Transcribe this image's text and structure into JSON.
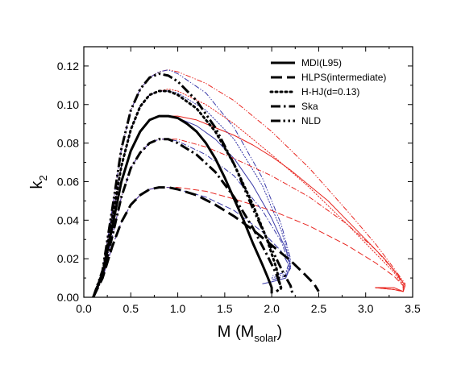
{
  "chart_data": {
    "type": "line",
    "title": "",
    "xlabel": {
      "main": "M (M",
      "sub": "solar",
      "close": ")"
    },
    "ylabel": {
      "main": "k",
      "sub": "2"
    },
    "xlim": [
      0.0,
      3.5
    ],
    "ylim": [
      0.0,
      0.13
    ],
    "x_ticks": [
      0.0,
      0.5,
      1.0,
      1.5,
      2.0,
      2.5,
      3.0,
      3.5
    ],
    "x_tick_labels": [
      "0.0",
      "0.5",
      "1.0",
      "1.5",
      "2.0",
      "2.5",
      "3.0",
      "3.5"
    ],
    "y_ticks": [
      0.0,
      0.02,
      0.04,
      0.06,
      0.08,
      0.1,
      0.12
    ],
    "y_tick_labels": [
      "0.00",
      "0.02",
      "0.04",
      "0.06",
      "0.08",
      "0.10",
      "0.12"
    ],
    "grid": false,
    "legend_position": "top-right",
    "legend": [
      {
        "label": "MDI(L95)",
        "style": "solid"
      },
      {
        "label": "HLPS(intermediate)",
        "style": "dash"
      },
      {
        "label": "H-HJ(d=0.13)",
        "style": "dot"
      },
      {
        "label": "Ska",
        "style": "dashdot"
      },
      {
        "label": "NLD",
        "style": "dashdotdot"
      }
    ],
    "colors": {
      "black": "#000000",
      "red": "#e8251f",
      "blue": "#3a3aa8"
    },
    "series": [
      {
        "name": "MDI(L95)",
        "color": "#000000",
        "style": "solid",
        "width": 3,
        "x": [
          0.1,
          0.2,
          0.3,
          0.4,
          0.5,
          0.6,
          0.7,
          0.8,
          0.9,
          1.0,
          1.1,
          1.2,
          1.3,
          1.4,
          1.5,
          1.6,
          1.7,
          1.8,
          1.9,
          1.96,
          2.0,
          2.0
        ],
        "y": [
          0.0,
          0.012,
          0.036,
          0.06,
          0.076,
          0.086,
          0.092,
          0.094,
          0.094,
          0.093,
          0.09,
          0.086,
          0.08,
          0.072,
          0.062,
          0.051,
          0.04,
          0.028,
          0.017,
          0.01,
          0.005,
          0.002
        ]
      },
      {
        "name": "MDI(L95)",
        "color": "#e8251f",
        "style": "solid",
        "width": 1,
        "x": [
          0.1,
          0.2,
          0.3,
          0.4,
          0.5,
          0.6,
          0.7,
          0.8,
          0.9,
          1.0,
          1.2,
          1.4,
          1.6,
          1.8,
          2.0,
          2.2,
          2.4,
          2.6,
          2.8,
          3.0,
          3.2,
          3.35,
          3.42,
          3.4,
          3.3,
          3.1
        ],
        "y": [
          0.0,
          0.012,
          0.036,
          0.06,
          0.076,
          0.086,
          0.092,
          0.094,
          0.094,
          0.094,
          0.092,
          0.088,
          0.084,
          0.079,
          0.073,
          0.066,
          0.058,
          0.05,
          0.04,
          0.03,
          0.02,
          0.011,
          0.006,
          0.003,
          0.005,
          0.005
        ]
      },
      {
        "name": "MDI(L95)",
        "color": "#3a3aa8",
        "style": "solid",
        "width": 1,
        "x": [
          0.1,
          0.2,
          0.3,
          0.4,
          0.5,
          0.6,
          0.7,
          0.8,
          0.9,
          1.0,
          1.2,
          1.4,
          1.6,
          1.8,
          2.0,
          2.15,
          2.2,
          2.15,
          2.0,
          1.9
        ],
        "y": [
          0.0,
          0.012,
          0.036,
          0.06,
          0.076,
          0.086,
          0.092,
          0.094,
          0.094,
          0.093,
          0.089,
          0.082,
          0.072,
          0.058,
          0.041,
          0.025,
          0.016,
          0.01,
          0.008,
          0.007
        ]
      },
      {
        "name": "HLPS(intermediate)",
        "color": "#000000",
        "style": "dash",
        "width": 3,
        "x": [
          0.1,
          0.2,
          0.3,
          0.4,
          0.5,
          0.6,
          0.7,
          0.8,
          0.9,
          1.0,
          1.2,
          1.4,
          1.6,
          1.8,
          2.0,
          2.2,
          2.35,
          2.45,
          2.5
        ],
        "y": [
          0.0,
          0.01,
          0.026,
          0.039,
          0.048,
          0.053,
          0.056,
          0.057,
          0.057,
          0.056,
          0.053,
          0.048,
          0.042,
          0.035,
          0.027,
          0.019,
          0.012,
          0.007,
          0.003
        ]
      },
      {
        "name": "HLPS(intermediate)",
        "color": "#e8251f",
        "style": "dash",
        "width": 1,
        "x": [
          0.1,
          0.2,
          0.3,
          0.4,
          0.5,
          0.6,
          0.7,
          0.8,
          0.9,
          1.0,
          1.3,
          1.6,
          2.0,
          2.4,
          2.8,
          3.1,
          3.3,
          3.4,
          3.4,
          3.3,
          3.1
        ],
        "y": [
          0.0,
          0.01,
          0.026,
          0.039,
          0.048,
          0.053,
          0.056,
          0.057,
          0.057,
          0.057,
          0.055,
          0.051,
          0.045,
          0.037,
          0.027,
          0.018,
          0.011,
          0.006,
          0.003,
          0.004,
          0.005
        ]
      },
      {
        "name": "HLPS(intermediate)",
        "color": "#3a3aa8",
        "style": "dash",
        "width": 1,
        "x": [
          0.1,
          0.2,
          0.3,
          0.4,
          0.5,
          0.6,
          0.7,
          0.8,
          0.9,
          1.0,
          1.3,
          1.6,
          1.9,
          2.1,
          2.2,
          2.15,
          2.0
        ],
        "y": [
          0.0,
          0.01,
          0.026,
          0.039,
          0.048,
          0.053,
          0.056,
          0.057,
          0.057,
          0.056,
          0.052,
          0.045,
          0.034,
          0.024,
          0.015,
          0.011,
          0.009
        ]
      },
      {
        "name": "H-HJ(d=0.13)",
        "color": "#000000",
        "style": "dot",
        "width": 3,
        "x": [
          0.1,
          0.2,
          0.3,
          0.4,
          0.5,
          0.6,
          0.7,
          0.8,
          0.9,
          1.0,
          1.2,
          1.4,
          1.6,
          1.8,
          1.95,
          2.05,
          2.1
        ],
        "y": [
          0.0,
          0.013,
          0.04,
          0.068,
          0.087,
          0.099,
          0.105,
          0.107,
          0.107,
          0.105,
          0.098,
          0.086,
          0.069,
          0.048,
          0.03,
          0.015,
          0.004
        ]
      },
      {
        "name": "H-HJ(d=0.13)",
        "color": "#e8251f",
        "style": "dot",
        "width": 1,
        "x": [
          0.1,
          0.2,
          0.3,
          0.4,
          0.5,
          0.6,
          0.7,
          0.8,
          0.9,
          1.0,
          1.3,
          1.6,
          2.0,
          2.4,
          2.8,
          3.1,
          3.3,
          3.4,
          3.4,
          3.3,
          3.1
        ],
        "y": [
          0.0,
          0.013,
          0.04,
          0.068,
          0.087,
          0.099,
          0.105,
          0.107,
          0.108,
          0.107,
          0.1,
          0.09,
          0.074,
          0.057,
          0.038,
          0.023,
          0.013,
          0.006,
          0.003,
          0.004,
          0.005
        ]
      },
      {
        "name": "H-HJ(d=0.13)",
        "color": "#3a3aa8",
        "style": "dot",
        "width": 1,
        "x": [
          0.1,
          0.2,
          0.3,
          0.4,
          0.5,
          0.6,
          0.7,
          0.8,
          0.9,
          1.0,
          1.3,
          1.6,
          1.9,
          2.1,
          2.2,
          2.15,
          2.0
        ],
        "y": [
          0.0,
          0.013,
          0.04,
          0.068,
          0.087,
          0.099,
          0.105,
          0.107,
          0.107,
          0.106,
          0.097,
          0.082,
          0.058,
          0.035,
          0.018,
          0.012,
          0.01
        ]
      },
      {
        "name": "Ska",
        "color": "#000000",
        "style": "dashdot",
        "width": 3,
        "x": [
          0.1,
          0.2,
          0.3,
          0.4,
          0.5,
          0.6,
          0.7,
          0.8,
          0.9,
          1.0,
          1.2,
          1.4,
          1.6,
          1.8,
          1.95,
          2.05,
          2.1,
          2.05
        ],
        "y": [
          0.0,
          0.011,
          0.031,
          0.052,
          0.067,
          0.075,
          0.08,
          0.082,
          0.082,
          0.08,
          0.074,
          0.065,
          0.052,
          0.036,
          0.022,
          0.012,
          0.005,
          0.003
        ]
      },
      {
        "name": "Ska",
        "color": "#e8251f",
        "style": "dashdot",
        "width": 1,
        "x": [
          0.1,
          0.2,
          0.3,
          0.4,
          0.5,
          0.6,
          0.7,
          0.8,
          0.9,
          1.0,
          1.3,
          1.6,
          2.0,
          2.4,
          2.8,
          3.1,
          3.3,
          3.4,
          3.4,
          3.3,
          3.1
        ],
        "y": [
          0.0,
          0.011,
          0.031,
          0.052,
          0.067,
          0.075,
          0.08,
          0.082,
          0.082,
          0.082,
          0.078,
          0.072,
          0.063,
          0.052,
          0.038,
          0.025,
          0.014,
          0.007,
          0.003,
          0.004,
          0.005
        ]
      },
      {
        "name": "Ska",
        "color": "#3a3aa8",
        "style": "dashdot",
        "width": 1,
        "x": [
          0.1,
          0.2,
          0.3,
          0.4,
          0.5,
          0.6,
          0.7,
          0.8,
          0.9,
          1.0,
          1.3,
          1.6,
          1.9,
          2.1,
          2.2,
          2.15,
          2.0
        ],
        "y": [
          0.0,
          0.011,
          0.031,
          0.052,
          0.067,
          0.075,
          0.08,
          0.082,
          0.082,
          0.081,
          0.074,
          0.063,
          0.045,
          0.029,
          0.016,
          0.011,
          0.009
        ]
      },
      {
        "name": "NLD",
        "color": "#000000",
        "style": "dashdotdot",
        "width": 3,
        "x": [
          0.1,
          0.2,
          0.3,
          0.4,
          0.5,
          0.6,
          0.7,
          0.8,
          0.9,
          1.0,
          1.2,
          1.4,
          1.6,
          1.8,
          2.0,
          2.12,
          2.2,
          2.22
        ],
        "y": [
          0.0,
          0.014,
          0.045,
          0.077,
          0.097,
          0.108,
          0.114,
          0.116,
          0.115,
          0.112,
          0.102,
          0.088,
          0.069,
          0.046,
          0.025,
          0.013,
          0.006,
          0.002
        ]
      },
      {
        "name": "NLD",
        "color": "#e8251f",
        "style": "dashdotdot",
        "width": 1,
        "x": [
          0.1,
          0.2,
          0.3,
          0.4,
          0.5,
          0.6,
          0.7,
          0.8,
          0.9,
          1.0,
          1.3,
          1.6,
          2.0,
          2.4,
          2.8,
          3.1,
          3.3,
          3.42,
          3.4,
          3.3,
          3.1
        ],
        "y": [
          0.0,
          0.014,
          0.045,
          0.077,
          0.097,
          0.108,
          0.114,
          0.117,
          0.118,
          0.117,
          0.111,
          0.102,
          0.086,
          0.067,
          0.045,
          0.028,
          0.015,
          0.007,
          0.003,
          0.004,
          0.005
        ]
      },
      {
        "name": "NLD",
        "color": "#3a3aa8",
        "style": "dashdotdot",
        "width": 1,
        "x": [
          0.1,
          0.2,
          0.3,
          0.4,
          0.5,
          0.6,
          0.7,
          0.8,
          0.9,
          1.0,
          1.3,
          1.6,
          1.9,
          2.1,
          2.2,
          2.15,
          2.0
        ],
        "y": [
          0.0,
          0.014,
          0.045,
          0.077,
          0.097,
          0.108,
          0.114,
          0.117,
          0.118,
          0.116,
          0.106,
          0.088,
          0.062,
          0.038,
          0.02,
          0.013,
          0.011
        ]
      }
    ]
  }
}
